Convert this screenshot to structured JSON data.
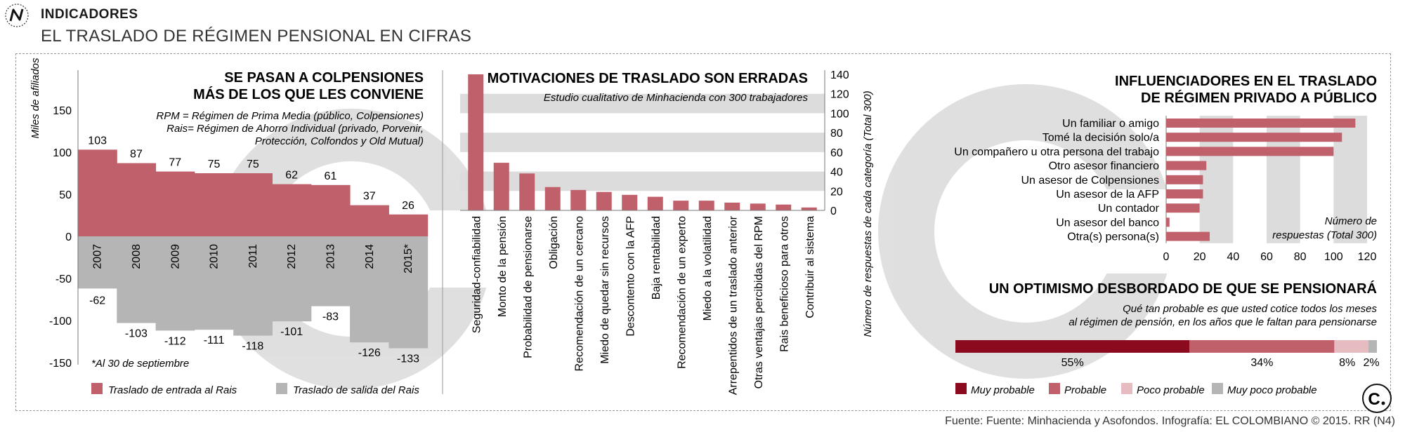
{
  "header": {
    "kicker": "INDICADORES",
    "title": "EL TRASLADO DE RÉGIMEN PENSIONAL EN CIFRAS"
  },
  "footer": {
    "source": "Fuente: Fuente: Minhacienda y Asofondos. Infografía: EL COLOMBIANO © 2015. RR (N4)"
  },
  "colors": {
    "red": "#c0606a",
    "dark_red": "#8c0a1e",
    "light_pink": "#e6bcc0",
    "gray": "#b5b5b5",
    "stripe": "#dcdcdc"
  },
  "chart_data": [
    {
      "type": "bar",
      "title_line1": "SE PASAN A COLPENSIONES",
      "title_line2": "MÁS DE LOS QUE LES CONVIENE",
      "notes": [
        "RPM = Régimen de Prima Media (público, Colpensiones)",
        "Rais= Régimen de Ahorro Individual (privado, Porvenir,",
        "Protección, Colfondos y Old Mutual)"
      ],
      "ylabel": "Miles de afiliados",
      "categories": [
        "2007",
        "2008",
        "2009",
        "2010",
        "2011",
        "2012",
        "2013",
        "2014",
        "2015*"
      ],
      "series": [
        {
          "name": "Traslado de entrada al Rais",
          "values": [
            103,
            87,
            77,
            75,
            75,
            62,
            61,
            37,
            26
          ]
        },
        {
          "name": "Traslado de salida del Rais",
          "values": [
            -62,
            -103,
            -112,
            -111,
            -118,
            -101,
            -83,
            -126,
            -133
          ]
        }
      ],
      "value_labels_pos": [
        "103",
        "87",
        "77",
        "75",
        "75",
        "62",
        "61",
        "37",
        "26"
      ],
      "value_labels_neg": [
        "-62",
        "-103",
        "-112",
        "-111",
        "-118",
        "-101",
        "-83",
        "-126",
        "-133"
      ],
      "yticks": [
        150,
        100,
        50,
        0,
        -50,
        -100,
        -150
      ],
      "ytick_labels": [
        "150",
        "100",
        "50",
        "0",
        "-50",
        "-100",
        "-150"
      ],
      "ylim": [
        -150,
        150
      ],
      "footnote": "*Al  30 de septiembre",
      "legend": [
        "Traslado de entrada al Rais",
        "Traslado de salida del Rais"
      ]
    },
    {
      "type": "bar",
      "title": "MOTIVACIONES DE TRASLADO SON ERRADAS",
      "subtitle": "Estudio cualitativo de Minhacienda con 300 trabajadores",
      "ylabel": "Número de respuestas de cada categoría (Total 300)",
      "categories": [
        "Seguridad-confiabilidad",
        "Monto de la pensión",
        "Probabilidad de pensionarse",
        "Obligación",
        "Recomendación de un cercano",
        "Miedo de quedar sin recursos",
        "Descontento con la AFP",
        "Baja rentabilidad",
        "Recomendación de un experto",
        "Miedo a la volatilidad",
        "Arrepentidos de un traslado anterior",
        "Otras ventajas percibidas del RPM",
        "Rais beneficioso para otros",
        "Contribuir al sistema"
      ],
      "values": [
        140,
        49,
        38,
        24,
        21,
        19,
        16,
        14,
        10,
        10,
        8,
        7,
        6,
        3
      ],
      "yticks": [
        0,
        20,
        40,
        60,
        80,
        100,
        120,
        140
      ],
      "ytick_labels": [
        "0",
        "20",
        "40",
        "60",
        "80",
        "100",
        "120",
        "140"
      ],
      "ylim": [
        0,
        140
      ]
    },
    {
      "type": "bar",
      "orientation": "horizontal",
      "title_line1": "INFLUENCIADORES EN EL TRASLADO",
      "title_line2": "DE RÉGIMEN PRIVADO A PÚBLICO",
      "categories": [
        "Un familiar o amigo",
        "Tomé la decisión solo/a",
        "Un compañero u otra persona del trabajo",
        "Otro asesor financiero",
        "Un asesor de Colpensiones",
        "Un asesor de la AFP",
        "Un contador",
        "Un asesor del banco",
        "Otra(s) persona(s)"
      ],
      "values": [
        113,
        105,
        100,
        24,
        22,
        22,
        20,
        2,
        26
      ],
      "xticks": [
        0,
        20,
        40,
        60,
        80,
        100,
        120
      ],
      "xtick_labels": [
        "0",
        "20",
        "40",
        "60",
        "80",
        "100",
        "120"
      ],
      "xlim": [
        0,
        120
      ],
      "axis_note_line1": "Número de",
      "axis_note_line2": "respuestas (Total 300)"
    },
    {
      "type": "bar",
      "orientation": "stacked-horizontal",
      "title": "UN OPTIMISMO DESBORDADO DE QUE SE PENSIONARÁ",
      "subtitle_line1": "Qué tan probable es que usted cotice todos los meses",
      "subtitle_line2": "al régimen de pensión, en los años que le faltan para pensionarse",
      "categories": [
        "Muy probable",
        "Probable",
        "Poco probable",
        "Muy poco probable"
      ],
      "values": [
        55,
        34,
        8,
        2
      ],
      "value_labels": [
        "55%",
        "34%",
        "8%",
        "2%"
      ],
      "legend": [
        "Muy probable",
        "Probable",
        "Poco probable",
        "Muy poco probable"
      ]
    }
  ]
}
